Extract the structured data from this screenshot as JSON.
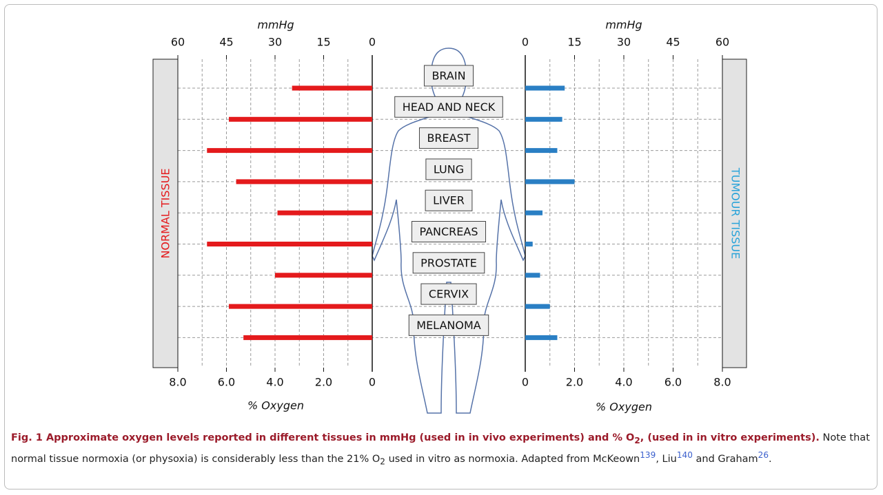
{
  "chart_data": {
    "type": "bar",
    "categories": [
      "BRAIN",
      "HEAD AND NECK",
      "BREAST",
      "LUNG",
      "LIVER",
      "PANCREAS",
      "PROSTATE",
      "CERVIX",
      "MELANOMA"
    ],
    "series": [
      {
        "name": "NORMAL TISSUE",
        "color": "#e41a1c",
        "values": [
          3.3,
          5.9,
          6.8,
          5.6,
          3.9,
          6.8,
          4.0,
          5.9,
          5.3
        ]
      },
      {
        "name": "TUMOUR TISSUE",
        "color": "#2a7fc4",
        "values": [
          1.6,
          1.5,
          1.3,
          2.0,
          0.7,
          0.3,
          0.6,
          1.0,
          1.3
        ]
      }
    ],
    "xlabel": "% Oxygen",
    "xlim": [
      0,
      8
    ],
    "xticks": [
      0,
      {
        "value": 2,
        "label": "2.0"
      },
      {
        "value": 4,
        "label": "4.0"
      },
      {
        "value": 6,
        "label": "6.0"
      },
      {
        "value": 8,
        "label": "8.0"
      }
    ],
    "minor_xticks": [
      1,
      3,
      5,
      7
    ],
    "x2label": "mmHg",
    "x2lim": [
      0,
      60
    ],
    "x2ticks": [
      0,
      15,
      30,
      45,
      60
    ],
    "grid": true
  },
  "caption": [
    {
      "text": "Fig. 1 Approximate oxygen levels reported in different tissues in mmHg (used in in vivo experiments) and % O",
      "style": "bold"
    },
    {
      "text": "2",
      "style": "bold-sub"
    },
    {
      "text": ", (used in in vitro experiments).",
      "style": "bold"
    },
    {
      "text": " Note that normal tissue normoxia (or physoxia) is considerably less than the 21% O",
      "style": "normal"
    },
    {
      "text": "2",
      "style": "sub"
    },
    {
      "text": " used in vitro as normoxia. Adapted from McKeown",
      "style": "normal"
    },
    {
      "text": "139",
      "style": "sup"
    },
    {
      "text": ", Liu",
      "style": "normal"
    },
    {
      "text": "140",
      "style": "sup"
    },
    {
      "text": " and Graham",
      "style": "normal"
    },
    {
      "text": "26",
      "style": "sup"
    },
    {
      "text": ".",
      "style": "normal"
    }
  ]
}
